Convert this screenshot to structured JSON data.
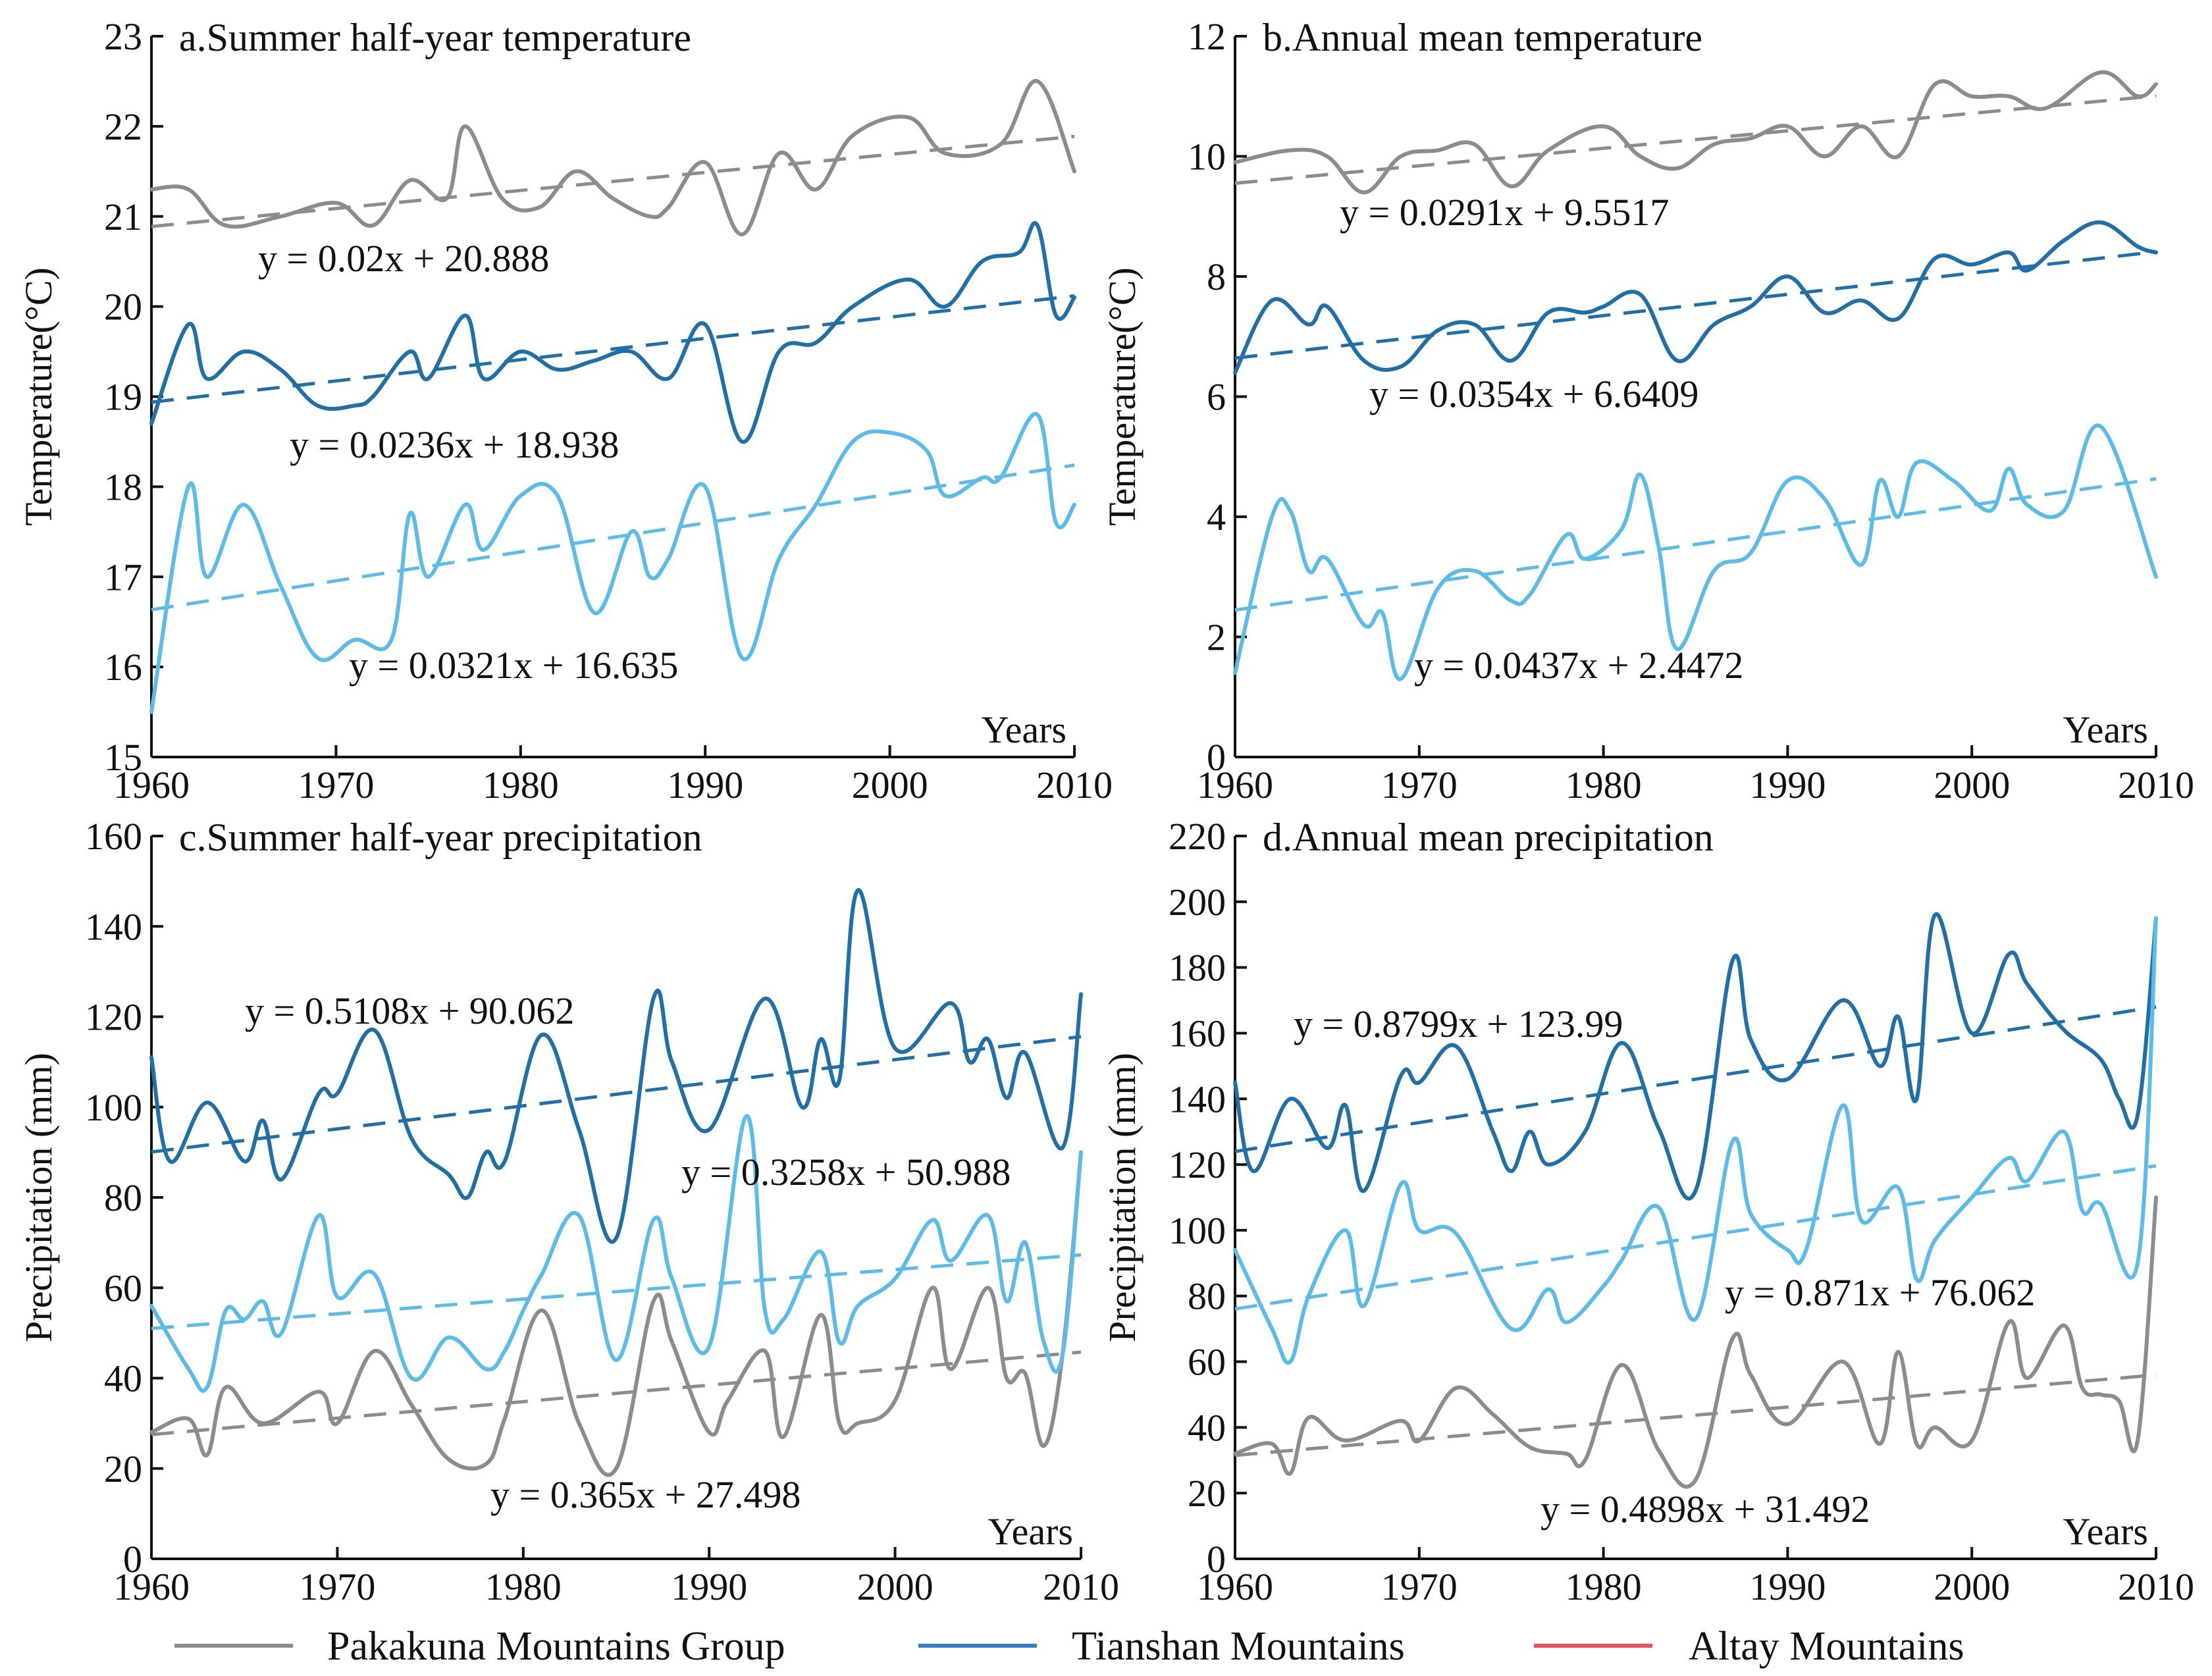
{
  "colors": {
    "pakakuna": "#8c8c8c",
    "tianshan": "#1f6fa8",
    "altay": "#5bbcea",
    "legend_tianshan": "#2f7fd0",
    "legend_altay": "#f05050"
  },
  "legend": [
    {
      "label": "Pakakuna Mountains Group",
      "color": "#8c8c8c"
    },
    {
      "label": "Tianshan Mountains",
      "color": "#2f7fd0"
    },
    {
      "label": "Altay Mountains",
      "color": "#f05050"
    }
  ],
  "chart_data": [
    {
      "type": "line",
      "title": "a.Summer half-year temperature",
      "xlabel": "Years",
      "ylabel": "Temperature(°C)",
      "xlim": [
        1960,
        2010
      ],
      "ylim": [
        15,
        23
      ],
      "xticks": [
        1960,
        1970,
        1980,
        1990,
        2000,
        2010
      ],
      "yticks": [
        15,
        16,
        17,
        18,
        19,
        20,
        21,
        22,
        23
      ],
      "series": [
        {
          "name": "Pakakuna Mountains Group",
          "color": "#8c8c8c",
          "x": [
            1960,
            1962,
            1964,
            1967,
            1970,
            1972,
            1974,
            1976,
            1977,
            1979,
            1981,
            1983,
            1985,
            1987,
            1988,
            1990,
            1992,
            1994,
            1996,
            1998,
            2001,
            2003,
            2006,
            2008,
            2010
          ],
          "y": [
            21.3,
            21.3,
            20.9,
            21.0,
            21.15,
            20.9,
            21.4,
            21.2,
            22.0,
            21.2,
            21.1,
            21.5,
            21.2,
            21.0,
            21.1,
            21.6,
            20.8,
            21.7,
            21.3,
            21.9,
            22.1,
            21.7,
            21.8,
            22.5,
            21.5
          ],
          "trend": {
            "slope": 0.02,
            "intercept": 20.888,
            "label": "y = 0.02x + 20.888"
          }
        },
        {
          "name": "Tianshan Mountains",
          "color": "#1f6fa8",
          "x": [
            1960,
            1962,
            1963,
            1965,
            1967,
            1969,
            1971,
            1972,
            1974,
            1975,
            1977,
            1978,
            1980,
            1982,
            1984,
            1986,
            1988,
            1990,
            1992,
            1994,
            1996,
            1998,
            2001,
            2003,
            2005,
            2007,
            2008,
            2009,
            2010
          ],
          "y": [
            18.7,
            19.8,
            19.2,
            19.5,
            19.3,
            18.9,
            18.9,
            19.0,
            19.5,
            19.2,
            19.9,
            19.2,
            19.5,
            19.3,
            19.4,
            19.5,
            19.2,
            19.8,
            18.5,
            19.5,
            19.6,
            20.0,
            20.3,
            20.0,
            20.5,
            20.6,
            20.9,
            19.9,
            20.1
          ],
          "trend": {
            "slope": 0.0236,
            "intercept": 18.938,
            "label": "y = 0.0236x + 18.938"
          }
        },
        {
          "name": "Altay Mountains",
          "color": "#5bbcea",
          "x": [
            1960,
            1962,
            1963,
            1965,
            1967,
            1969,
            1971,
            1973,
            1974,
            1975,
            1977,
            1978,
            1980,
            1982,
            1984,
            1986,
            1987,
            1988,
            1990,
            1992,
            1994,
            1996,
            1998,
            2000,
            2002,
            2003,
            2005,
            2006,
            2008,
            2009,
            2010
          ],
          "y": [
            15.5,
            18.0,
            17.0,
            17.8,
            16.9,
            16.1,
            16.3,
            16.3,
            17.7,
            17.0,
            17.8,
            17.3,
            17.9,
            17.9,
            16.6,
            17.5,
            17.0,
            17.2,
            18.0,
            16.1,
            17.2,
            17.8,
            18.5,
            18.6,
            18.4,
            17.9,
            18.1,
            18.1,
            18.8,
            17.6,
            17.8
          ],
          "trend": {
            "slope": 0.0321,
            "intercept": 16.635,
            "label": "y = 0.0321x + 16.635"
          }
        }
      ]
    },
    {
      "type": "line",
      "title": "b.Annual mean temperature",
      "xlabel": "Years",
      "ylabel": "Temperature(°C)",
      "xlim": [
        1960,
        2010
      ],
      "ylim": [
        0,
        12
      ],
      "xticks": [
        1960,
        1970,
        1980,
        1990,
        2000,
        2010
      ],
      "yticks": [
        0,
        2,
        4,
        6,
        8,
        10,
        12
      ],
      "series": [
        {
          "name": "Pakakuna Mountains Group",
          "color": "#8c8c8c",
          "x": [
            1960,
            1963,
            1965,
            1967,
            1969,
            1971,
            1973,
            1975,
            1977,
            1980,
            1982,
            1984,
            1986,
            1988,
            1990,
            1992,
            1994,
            1996,
            1998,
            2000,
            2002,
            2004,
            2007,
            2009,
            2010
          ],
          "y": [
            9.9,
            10.1,
            10.0,
            9.4,
            10.0,
            10.1,
            10.2,
            9.5,
            10.1,
            10.5,
            10.0,
            9.8,
            10.2,
            10.3,
            10.5,
            10.0,
            10.5,
            10.0,
            11.2,
            11.0,
            11.0,
            10.8,
            11.4,
            11.0,
            11.2
          ],
          "trend": {
            "slope": 0.0291,
            "intercept": 9.5517,
            "label": "y = 0.0291x + 9.5517"
          }
        },
        {
          "name": "Tianshan Mountains",
          "color": "#1f6fa8",
          "x": [
            1960,
            1962,
            1964,
            1965,
            1967,
            1969,
            1971,
            1973,
            1975,
            1977,
            1979,
            1980,
            1982,
            1984,
            1986,
            1988,
            1990,
            1992,
            1994,
            1996,
            1998,
            2000,
            2002,
            2003,
            2005,
            2007,
            2009,
            2010
          ],
          "y": [
            6.4,
            7.6,
            7.2,
            7.5,
            6.6,
            6.5,
            7.1,
            7.2,
            6.6,
            7.4,
            7.4,
            7.5,
            7.7,
            6.6,
            7.2,
            7.5,
            8.0,
            7.4,
            7.6,
            7.3,
            8.3,
            8.2,
            8.4,
            8.1,
            8.6,
            8.9,
            8.5,
            8.4
          ],
          "trend": {
            "slope": 0.0354,
            "intercept": 6.6409,
            "label": "y = 0.0354x + 6.6409"
          }
        },
        {
          "name": "Altay Mountains",
          "color": "#5bbcea",
          "x": [
            1960,
            1962,
            1963,
            1964,
            1965,
            1967,
            1968,
            1969,
            1971,
            1973,
            1975,
            1976,
            1978,
            1979,
            1981,
            1982,
            1983,
            1984,
            1986,
            1988,
            1990,
            1992,
            1994,
            1995,
            1996,
            1997,
            1999,
            2001,
            2002,
            2003,
            2005,
            2007,
            2010
          ],
          "y": [
            1.4,
            4.0,
            4.1,
            3.1,
            3.3,
            2.2,
            2.4,
            1.3,
            2.8,
            3.1,
            2.6,
            2.7,
            3.7,
            3.3,
            3.8,
            4.7,
            3.5,
            1.8,
            3.1,
            3.4,
            4.6,
            4.3,
            3.2,
            4.6,
            4.0,
            4.9,
            4.6,
            4.1,
            4.8,
            4.2,
            4.1,
            5.5,
            3.0
          ],
          "trend": {
            "slope": 0.0437,
            "intercept": 2.4472,
            "label": "y = 0.0437x + 2.4472"
          }
        }
      ]
    },
    {
      "type": "line",
      "title": "c.Summer half-year precipitation",
      "xlabel": "Years",
      "ylabel": "Precipitation (mm)",
      "xlim": [
        1960,
        2010
      ],
      "ylim": [
        0,
        160
      ],
      "xticks": [
        1960,
        1970,
        1980,
        1990,
        2000,
        2010
      ],
      "yticks": [
        0,
        20,
        40,
        60,
        80,
        100,
        120,
        140,
        160
      ],
      "series": [
        {
          "name": "Pakakuna Mountains Group",
          "color": "#8c8c8c",
          "x": [
            1960,
            1962,
            1963,
            1964,
            1966,
            1969,
            1970,
            1972,
            1974,
            1976,
            1978,
            1979,
            1981,
            1983,
            1985,
            1987,
            1988,
            1990,
            1991,
            1993,
            1994,
            1996,
            1997,
            1998,
            2000,
            2002,
            2003,
            2005,
            2006,
            2007,
            2008,
            2009,
            2010
          ],
          "y": [
            28,
            31,
            23,
            38,
            30,
            37,
            30,
            46,
            34,
            22,
            21,
            31,
            55,
            30,
            20,
            57,
            48,
            28,
            35,
            46,
            27,
            54,
            30,
            30,
            35,
            60,
            42,
            60,
            40,
            41,
            25,
            45,
            90
          ],
          "trend": {
            "slope": 0.365,
            "intercept": 27.498,
            "label": "y = 0.365x + 27.498"
          }
        },
        {
          "name": "Tianshan Mountains",
          "color": "#1f6fa8",
          "x": [
            1960,
            1961,
            1963,
            1965,
            1966,
            1967,
            1969,
            1970,
            1972,
            1974,
            1976,
            1977,
            1978,
            1979,
            1981,
            1983,
            1985,
            1987,
            1988,
            1990,
            1993,
            1995,
            1996,
            1997,
            1998,
            2000,
            2003,
            2004,
            2005,
            2006,
            2007,
            2009,
            2010
          ],
          "y": [
            111,
            88,
            101,
            88,
            97,
            84,
            103,
            103,
            117,
            93,
            85,
            80,
            90,
            88,
            116,
            95,
            71,
            124,
            110,
            95,
            124,
            100,
            115,
            106,
            148,
            113,
            123,
            110,
            115,
            102,
            112,
            91,
            125
          ],
          "trend": {
            "slope": 0.5108,
            "intercept": 90.062,
            "label": "y = 0.5108x + 90.062"
          }
        },
        {
          "name": "Altay Mountains",
          "color": "#5bbcea",
          "x": [
            1960,
            1962,
            1963,
            1964,
            1965,
            1966,
            1967,
            1969,
            1970,
            1972,
            1974,
            1976,
            1978,
            1979,
            1980,
            1981,
            1983,
            1985,
            1987,
            1988,
            1990,
            1992,
            1993,
            1994,
            1996,
            1997,
            1998,
            2000,
            2002,
            2003,
            2005,
            2006,
            2007,
            2008,
            2009,
            2010
          ],
          "y": [
            56,
            42,
            38,
            55,
            53,
            57,
            50,
            76,
            58,
            63,
            40,
            49,
            42,
            46,
            55,
            63,
            76,
            44,
            75,
            62,
            47,
            98,
            55,
            53,
            68,
            48,
            56,
            62,
            75,
            66,
            76,
            57,
            70,
            48,
            45,
            90
          ],
          "trend": {
            "slope": 0.3258,
            "intercept": 50.988,
            "label": "y = 0.3258x + 50.988"
          }
        }
      ]
    },
    {
      "type": "line",
      "title": "d.Annual mean precipitation",
      "xlabel": "Years",
      "ylabel": "Precipitation (mm)",
      "xlim": [
        1960,
        2010
      ],
      "ylim": [
        0,
        220
      ],
      "xticks": [
        1960,
        1970,
        1980,
        1990,
        2000,
        2010
      ],
      "yticks": [
        0,
        20,
        40,
        60,
        80,
        100,
        120,
        140,
        160,
        180,
        200,
        220
      ],
      "series": [
        {
          "name": "Pakakuna Mountains Group",
          "color": "#8c8c8c",
          "x": [
            1960,
            1962,
            1963,
            1964,
            1966,
            1969,
            1970,
            1972,
            1974,
            1976,
            1978,
            1979,
            1981,
            1983,
            1985,
            1987,
            1988,
            1990,
            1993,
            1995,
            1996,
            1997,
            1998,
            2000,
            2002,
            2003,
            2005,
            2006,
            2007,
            2008,
            2009,
            2010
          ],
          "y": [
            32,
            35,
            26,
            43,
            36,
            42,
            36,
            52,
            44,
            34,
            32,
            30,
            59,
            33,
            24,
            67,
            56,
            41,
            60,
            35,
            63,
            35,
            40,
            36,
            72,
            55,
            71,
            52,
            50,
            48,
            36,
            110
          ],
          "trend": {
            "slope": 0.4898,
            "intercept": 31.492,
            "label": "y = 0.4898x + 31.492"
          }
        },
        {
          "name": "Tianshan Mountains",
          "color": "#1f6fa8",
          "x": [
            1960,
            1961,
            1963,
            1965,
            1966,
            1967,
            1969,
            1970,
            1972,
            1974,
            1975,
            1976,
            1977,
            1979,
            1981,
            1983,
            1985,
            1987,
            1988,
            1990,
            1993,
            1995,
            1996,
            1997,
            1998,
            2000,
            2002,
            2003,
            2005,
            2007,
            2008,
            2009,
            2010
          ],
          "y": [
            145,
            118,
            140,
            125,
            138,
            112,
            147,
            145,
            156,
            130,
            118,
            130,
            120,
            130,
            157,
            131,
            112,
            182,
            158,
            146,
            170,
            150,
            165,
            140,
            196,
            160,
            184,
            175,
            161,
            152,
            140,
            135,
            195
          ],
          "trend": {
            "slope": 0.8799,
            "intercept": 123.99,
            "label": "y = 0.8799x + 123.99"
          }
        },
        {
          "name": "Altay Mountains",
          "color": "#5bbcea",
          "x": [
            1960,
            1962,
            1963,
            1964,
            1966,
            1967,
            1969,
            1970,
            1972,
            1975,
            1977,
            1978,
            1980,
            1981,
            1983,
            1985,
            1987,
            1988,
            1990,
            1991,
            1993,
            1994,
            1996,
            1997,
            1998,
            2000,
            2002,
            2003,
            2005,
            2006,
            2007,
            2009,
            2010
          ],
          "y": [
            94,
            70,
            60,
            80,
            100,
            77,
            114,
            100,
            99,
            70,
            82,
            72,
            83,
            91,
            107,
            73,
            127,
            105,
            94,
            94,
            138,
            103,
            113,
            85,
            97,
            110,
            122,
            115,
            130,
            106,
            108,
            90,
            195
          ],
          "trend": {
            "slope": 0.871,
            "intercept": 76.062,
            "label": "y = 0.871x + 76.062"
          }
        }
      ]
    }
  ]
}
